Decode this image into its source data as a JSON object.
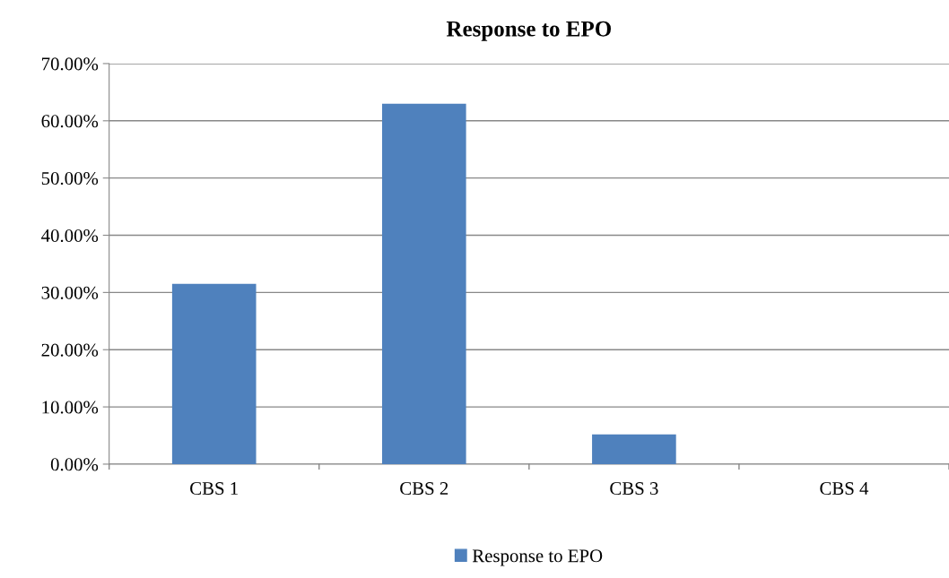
{
  "chart_data": {
    "type": "bar",
    "title": "Response to EPO",
    "categories": [
      "CBS 1",
      "CBS 2",
      "CBS 3",
      "CBS 4"
    ],
    "series": [
      {
        "name": "Response to EPO",
        "color": "#4f81bd",
        "values": [
          31.5,
          63,
          5.2,
          0
        ]
      }
    ],
    "ylim": [
      0,
      70
    ],
    "yticks": [
      {
        "value": 0,
        "label": "0.00%"
      },
      {
        "value": 10,
        "label": "10.00%"
      },
      {
        "value": 20,
        "label": "20.00%"
      },
      {
        "value": 30,
        "label": "30.00%"
      },
      {
        "value": 40,
        "label": "40.00%"
      },
      {
        "value": 50,
        "label": "50.00%"
      },
      {
        "value": 60,
        "label": "60.00%"
      },
      {
        "value": 70,
        "label": "70.00%"
      }
    ],
    "grid": "y",
    "legend": "bottom"
  }
}
